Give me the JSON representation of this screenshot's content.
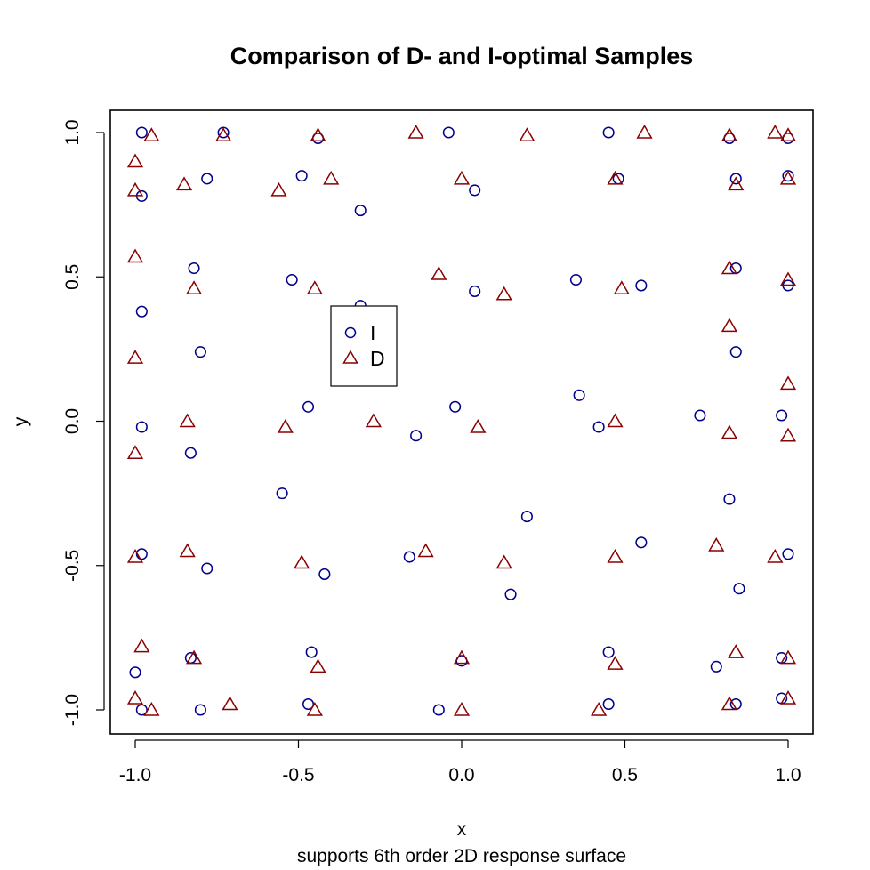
{
  "chart_data": {
    "type": "scatter",
    "title": "Comparison of D- and I-optimal Samples",
    "xlabel": "x",
    "ylabel": "y",
    "subtitle": "supports 6th order 2D response surface",
    "xlim": [
      -1.08,
      1.08
    ],
    "ylim": [
      -1.08,
      1.08
    ],
    "xticks": [
      -1.0,
      -0.5,
      0.0,
      0.5,
      1.0
    ],
    "yticks": [
      -1.0,
      -0.5,
      0.0,
      0.5,
      1.0
    ],
    "xtick_labels": [
      "-1.0",
      "-0.5",
      "0.0",
      "0.5",
      "1.0"
    ],
    "ytick_labels": [
      "-1.0",
      "-0.5",
      "0.0",
      "0.5",
      "1.0"
    ],
    "grid": false,
    "legend": {
      "position": "inside-left-center",
      "entries": [
        "I",
        "D"
      ]
    },
    "series": [
      {
        "name": "I",
        "marker": "circle",
        "color": "#00008B",
        "points": [
          [
            -0.98,
            1.0
          ],
          [
            -0.73,
            1.0
          ],
          [
            -0.44,
            0.98
          ],
          [
            -0.04,
            1.0
          ],
          [
            0.45,
            1.0
          ],
          [
            0.82,
            0.98
          ],
          [
            1.0,
            0.98
          ],
          [
            -0.98,
            0.78
          ],
          [
            -0.78,
            0.84
          ],
          [
            -0.49,
            0.85
          ],
          [
            -0.31,
            0.73
          ],
          [
            0.04,
            0.8
          ],
          [
            0.48,
            0.84
          ],
          [
            0.84,
            0.84
          ],
          [
            1.0,
            0.85
          ],
          [
            -0.82,
            0.53
          ],
          [
            -0.52,
            0.49
          ],
          [
            0.04,
            0.45
          ],
          [
            0.35,
            0.49
          ],
          [
            0.55,
            0.47
          ],
          [
            0.84,
            0.53
          ],
          [
            1.0,
            0.47
          ],
          [
            -0.98,
            0.38
          ],
          [
            -0.31,
            0.4
          ],
          [
            -0.8,
            0.24
          ],
          [
            0.84,
            0.24
          ],
          [
            -0.47,
            0.05
          ],
          [
            -0.02,
            0.05
          ],
          [
            0.36,
            0.09
          ],
          [
            0.73,
            0.02
          ],
          [
            0.98,
            0.02
          ],
          [
            -0.98,
            -0.02
          ],
          [
            -0.14,
            -0.05
          ],
          [
            0.42,
            -0.02
          ],
          [
            -0.83,
            -0.11
          ],
          [
            -0.55,
            -0.25
          ],
          [
            0.2,
            -0.33
          ],
          [
            0.82,
            -0.27
          ],
          [
            -0.98,
            -0.46
          ],
          [
            -0.78,
            -0.51
          ],
          [
            -0.42,
            -0.53
          ],
          [
            -0.16,
            -0.47
          ],
          [
            0.55,
            -0.42
          ],
          [
            1.0,
            -0.46
          ],
          [
            0.15,
            -0.6
          ],
          [
            0.85,
            -0.58
          ],
          [
            -1.0,
            -0.87
          ],
          [
            -0.83,
            -0.82
          ],
          [
            -0.46,
            -0.8
          ],
          [
            0.0,
            -0.83
          ],
          [
            0.45,
            -0.8
          ],
          [
            0.78,
            -0.85
          ],
          [
            0.98,
            -0.82
          ],
          [
            -0.98,
            -1.0
          ],
          [
            -0.8,
            -1.0
          ],
          [
            -0.47,
            -0.98
          ],
          [
            -0.07,
            -1.0
          ],
          [
            0.45,
            -0.98
          ],
          [
            0.84,
            -0.98
          ],
          [
            0.98,
            -0.96
          ]
        ]
      },
      {
        "name": "D",
        "marker": "triangle",
        "color": "#8B0000",
        "points": [
          [
            -0.95,
            0.99
          ],
          [
            -0.73,
            0.99
          ],
          [
            -0.44,
            0.99
          ],
          [
            -0.14,
            1.0
          ],
          [
            0.2,
            0.99
          ],
          [
            0.56,
            1.0
          ],
          [
            0.82,
            0.99
          ],
          [
            0.96,
            1.0
          ],
          [
            1.0,
            0.99
          ],
          [
            -1.0,
            0.9
          ],
          [
            -1.0,
            0.8
          ],
          [
            -0.85,
            0.82
          ],
          [
            -0.56,
            0.8
          ],
          [
            -0.4,
            0.84
          ],
          [
            0.0,
            0.84
          ],
          [
            0.47,
            0.84
          ],
          [
            0.84,
            0.82
          ],
          [
            1.0,
            0.84
          ],
          [
            -1.0,
            0.57
          ],
          [
            -0.82,
            0.46
          ],
          [
            -0.45,
            0.46
          ],
          [
            -0.07,
            0.51
          ],
          [
            0.13,
            0.44
          ],
          [
            0.49,
            0.46
          ],
          [
            0.82,
            0.53
          ],
          [
            1.0,
            0.49
          ],
          [
            0.82,
            0.33
          ],
          [
            -1.0,
            0.22
          ],
          [
            1.0,
            0.13
          ],
          [
            -0.84,
            0.0
          ],
          [
            -0.54,
            -0.02
          ],
          [
            -0.27,
            0.0
          ],
          [
            0.05,
            -0.02
          ],
          [
            0.47,
            0.0
          ],
          [
            0.82,
            -0.04
          ],
          [
            1.0,
            -0.05
          ],
          [
            -1.0,
            -0.11
          ],
          [
            -1.0,
            -0.47
          ],
          [
            -0.84,
            -0.45
          ],
          [
            -0.49,
            -0.49
          ],
          [
            -0.11,
            -0.45
          ],
          [
            0.13,
            -0.49
          ],
          [
            0.47,
            -0.47
          ],
          [
            0.78,
            -0.43
          ],
          [
            0.96,
            -0.47
          ],
          [
            -0.98,
            -0.78
          ],
          [
            -0.82,
            -0.82
          ],
          [
            -0.44,
            -0.85
          ],
          [
            0.0,
            -0.82
          ],
          [
            0.47,
            -0.84
          ],
          [
            0.84,
            -0.8
          ],
          [
            1.0,
            -0.82
          ],
          [
            -1.0,
            -0.96
          ],
          [
            -0.95,
            -1.0
          ],
          [
            -0.71,
            -0.98
          ],
          [
            -0.45,
            -1.0
          ],
          [
            0.0,
            -1.0
          ],
          [
            0.42,
            -1.0
          ],
          [
            0.82,
            -0.98
          ],
          [
            1.0,
            -0.96
          ]
        ]
      }
    ]
  }
}
